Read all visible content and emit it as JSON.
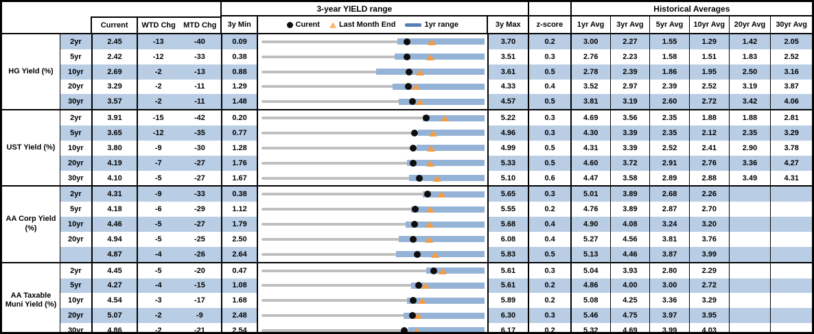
{
  "titles": {
    "range": "3-year YIELD range",
    "historical": "Historical Averages"
  },
  "headers": {
    "current": "Current",
    "wtd": "WTD Chg",
    "mtd": "MTD Chg",
    "min": "3y Min",
    "max": "3y Max",
    "z": "z-score",
    "avgs": [
      "1yr Avg",
      "3yr Avg",
      "5yr Avg",
      "10yr Avg",
      "20yr Avg",
      "30yr Avg"
    ]
  },
  "legend": {
    "current": "Curent",
    "last_month": "Last Month End",
    "range": "1yr range"
  },
  "colors": {
    "stripe": "#B9CDE5",
    "bar": "#95B3D7",
    "track": "#BFBFBF",
    "dot": "#0d0d0d",
    "triangle": "#F49C42",
    "legend_triangle": "#F8B870",
    "legend_dash": "#567FB4"
  },
  "sections": [
    {
      "label": "HG Yield (%)",
      "rows": [
        {
          "tenor": "2yr",
          "current": "2.45",
          "wtd": "-13",
          "mtd": "-40",
          "min": "0.09",
          "max": "3.70",
          "z": "0.2",
          "avgs": [
            "3.00",
            "2.27",
            "1.55",
            "1.29",
            "1.42",
            "2.05"
          ],
          "bar_start": 0.61
        },
        {
          "tenor": "5yr",
          "current": "2.42",
          "wtd": "-12",
          "mtd": "-33",
          "min": "0.38",
          "max": "3.51",
          "z": "0.3",
          "avgs": [
            "2.76",
            "2.23",
            "1.58",
            "1.51",
            "1.83",
            "2.52"
          ],
          "bar_start": 0.598
        },
        {
          "tenor": "10yr",
          "current": "2.69",
          "wtd": "-2",
          "mtd": "-13",
          "min": "0.88",
          "max": "3.61",
          "z": "0.5",
          "avgs": [
            "2.78",
            "2.39",
            "1.86",
            "1.95",
            "2.50",
            "3.16"
          ],
          "bar_start": 0.515
        },
        {
          "tenor": "20yr",
          "current": "3.29",
          "wtd": "-2",
          "mtd": "-11",
          "min": "1.29",
          "max": "4.33",
          "z": "0.4",
          "avgs": [
            "3.52",
            "2.97",
            "2.39",
            "2.52",
            "3.19",
            "3.87"
          ],
          "bar_start": 0.588
        },
        {
          "tenor": "30yr",
          "current": "3.57",
          "wtd": "-2",
          "mtd": "-11",
          "min": "1.48",
          "max": "4.57",
          "z": "0.5",
          "avgs": [
            "3.81",
            "3.19",
            "2.60",
            "2.72",
            "3.42",
            "4.06"
          ],
          "bar_start": 0.616
        }
      ]
    },
    {
      "label": "UST Yield (%)",
      "rows": [
        {
          "tenor": "2yr",
          "current": "3.91",
          "wtd": "-15",
          "mtd": "-42",
          "min": "0.20",
          "max": "5.22",
          "z": "0.3",
          "avgs": [
            "4.69",
            "3.56",
            "2.35",
            "1.88",
            "1.88",
            "2.81"
          ],
          "bar_start": 0.724
        },
        {
          "tenor": "5yr",
          "current": "3.65",
          "wtd": "-12",
          "mtd": "-35",
          "min": "0.77",
          "max": "4.96",
          "z": "0.3",
          "avgs": [
            "4.30",
            "3.39",
            "2.35",
            "2.12",
            "2.35",
            "3.29"
          ],
          "bar_start": 0.703
        },
        {
          "tenor": "10yr",
          "current": "3.80",
          "wtd": "-9",
          "mtd": "-30",
          "min": "1.28",
          "max": "4.99",
          "z": "0.5",
          "avgs": [
            "4.31",
            "3.39",
            "2.52",
            "2.41",
            "2.90",
            "3.78"
          ],
          "bar_start": 0.697
        },
        {
          "tenor": "20yr",
          "current": "4.19",
          "wtd": "-7",
          "mtd": "-27",
          "min": "1.76",
          "max": "5.33",
          "z": "0.5",
          "avgs": [
            "4.60",
            "3.72",
            "2.91",
            "2.76",
            "3.36",
            "4.27"
          ],
          "bar_start": 0.653
        },
        {
          "tenor": "30yr",
          "current": "4.10",
          "wtd": "-5",
          "mtd": "-27",
          "min": "1.67",
          "max": "5.10",
          "z": "0.6",
          "avgs": [
            "4.47",
            "3.58",
            "2.89",
            "2.88",
            "3.49",
            "4.31"
          ],
          "bar_start": 0.663
        }
      ]
    },
    {
      "label": "AA Corp Yield (%)",
      "rows": [
        {
          "tenor": "2yr",
          "current": "4.31",
          "wtd": "-9",
          "mtd": "-33",
          "min": "0.38",
          "max": "5.65",
          "z": "0.3",
          "avgs": [
            "5.01",
            "3.89",
            "2.68",
            "2.26",
            "",
            ""
          ],
          "bar_start": 0.724
        },
        {
          "tenor": "5yr",
          "current": "4.18",
          "wtd": "-6",
          "mtd": "-29",
          "min": "1.12",
          "max": "5.55",
          "z": "0.2",
          "avgs": [
            "4.76",
            "3.89",
            "2.87",
            "2.70",
            "",
            ""
          ],
          "bar_start": 0.67
        },
        {
          "tenor": "10yr",
          "current": "4.46",
          "wtd": "-5",
          "mtd": "-27",
          "min": "1.79",
          "max": "5.68",
          "z": "0.4",
          "avgs": [
            "4.90",
            "4.08",
            "3.24",
            "3.20",
            "",
            ""
          ],
          "bar_start": 0.648
        },
        {
          "tenor": "20yr",
          "current": "4.94",
          "wtd": "-5",
          "mtd": "-25",
          "min": "2.50",
          "max": "6.08",
          "z": "0.4",
          "avgs": [
            "5.27",
            "4.56",
            "3.81",
            "3.76",
            "",
            ""
          ],
          "bar_start": 0.616
        },
        {
          "tenor": "",
          "current": "4.87",
          "wtd": "-4",
          "mtd": "-26",
          "min": "2.64",
          "max": "5.83",
          "z": "0.5",
          "avgs": [
            "5.13",
            "4.46",
            "3.87",
            "3.99",
            "",
            ""
          ],
          "bar_start": 0.603
        }
      ]
    },
    {
      "label": "AA Taxable Muni Yield (%)",
      "rows": [
        {
          "tenor": "2yr",
          "current": "4.45",
          "wtd": "-5",
          "mtd": "-20",
          "min": "0.47",
          "max": "5.61",
          "z": "0.3",
          "avgs": [
            "5.04",
            "3.93",
            "2.80",
            "2.29",
            "",
            ""
          ],
          "bar_start": 0.739
        },
        {
          "tenor": "5yr",
          "current": "4.27",
          "wtd": "-4",
          "mtd": "-15",
          "min": "1.08",
          "max": "5.61",
          "z": "0.2",
          "avgs": [
            "4.86",
            "4.00",
            "3.00",
            "2.72",
            "",
            ""
          ],
          "bar_start": 0.67
        },
        {
          "tenor": "10yr",
          "current": "4.54",
          "wtd": "-3",
          "mtd": "-17",
          "min": "1.68",
          "max": "5.89",
          "z": "0.2",
          "avgs": [
            "5.08",
            "4.25",
            "3.36",
            "3.29",
            "",
            ""
          ],
          "bar_start": 0.653
        },
        {
          "tenor": "20yr",
          "current": "5.07",
          "wtd": "-2",
          "mtd": "-9",
          "min": "2.48",
          "max": "6.30",
          "z": "0.3",
          "avgs": [
            "5.46",
            "4.75",
            "3.97",
            "3.95",
            "",
            ""
          ],
          "bar_start": 0.638
        },
        {
          "tenor": "30yr",
          "current": "4.86",
          "wtd": "-2",
          "mtd": "-21",
          "min": "2.54",
          "max": "6.17",
          "z": "0.2",
          "avgs": [
            "5.32",
            "4.69",
            "3.99",
            "4.03",
            "",
            ""
          ],
          "bar_start": 0.658
        }
      ]
    }
  ],
  "chart_data": {
    "type": "table",
    "title": "3-year YIELD range",
    "legend": [
      "Curent",
      "Last Month End",
      "1yr range"
    ],
    "columns": [
      "Group",
      "Tenor",
      "Current",
      "WTD Chg",
      "MTD Chg",
      "3y Min",
      "3y Max",
      "z-score",
      "1yr Avg",
      "3yr Avg",
      "5yr Avg",
      "10yr Avg",
      "20yr Avg",
      "30yr Avg"
    ],
    "rows": [
      [
        "HG Yield (%)",
        "2yr",
        2.45,
        -13,
        -40,
        0.09,
        3.7,
        0.2,
        3.0,
        2.27,
        1.55,
        1.29,
        1.42,
        2.05
      ],
      [
        "HG Yield (%)",
        "5yr",
        2.42,
        -12,
        -33,
        0.38,
        3.51,
        0.3,
        2.76,
        2.23,
        1.58,
        1.51,
        1.83,
        2.52
      ],
      [
        "HG Yield (%)",
        "10yr",
        2.69,
        -2,
        -13,
        0.88,
        3.61,
        0.5,
        2.78,
        2.39,
        1.86,
        1.95,
        2.5,
        3.16
      ],
      [
        "HG Yield (%)",
        "20yr",
        3.29,
        -2,
        -11,
        1.29,
        4.33,
        0.4,
        3.52,
        2.97,
        2.39,
        2.52,
        3.19,
        3.87
      ],
      [
        "HG Yield (%)",
        "30yr",
        3.57,
        -2,
        -11,
        1.48,
        4.57,
        0.5,
        3.81,
        3.19,
        2.6,
        2.72,
        3.42,
        4.06
      ],
      [
        "UST Yield (%)",
        "2yr",
        3.91,
        -15,
        -42,
        0.2,
        5.22,
        0.3,
        4.69,
        3.56,
        2.35,
        1.88,
        1.88,
        2.81
      ],
      [
        "UST Yield (%)",
        "5yr",
        3.65,
        -12,
        -35,
        0.77,
        4.96,
        0.3,
        4.3,
        3.39,
        2.35,
        2.12,
        2.35,
        3.29
      ],
      [
        "UST Yield (%)",
        "10yr",
        3.8,
        -9,
        -30,
        1.28,
        4.99,
        0.5,
        4.31,
        3.39,
        2.52,
        2.41,
        2.9,
        3.78
      ],
      [
        "UST Yield (%)",
        "20yr",
        4.19,
        -7,
        -27,
        1.76,
        5.33,
        0.5,
        4.6,
        3.72,
        2.91,
        2.76,
        3.36,
        4.27
      ],
      [
        "UST Yield (%)",
        "30yr",
        4.1,
        -5,
        -27,
        1.67,
        5.1,
        0.6,
        4.47,
        3.58,
        2.89,
        2.88,
        3.49,
        4.31
      ],
      [
        "AA Corp Yield (%)",
        "2yr",
        4.31,
        -9,
        -33,
        0.38,
        5.65,
        0.3,
        5.01,
        3.89,
        2.68,
        2.26,
        null,
        null
      ],
      [
        "AA Corp Yield (%)",
        "5yr",
        4.18,
        -6,
        -29,
        1.12,
        5.55,
        0.2,
        4.76,
        3.89,
        2.87,
        2.7,
        null,
        null
      ],
      [
        "AA Corp Yield (%)",
        "10yr",
        4.46,
        -5,
        -27,
        1.79,
        5.68,
        0.4,
        4.9,
        4.08,
        3.24,
        3.2,
        null,
        null
      ],
      [
        "AA Corp Yield (%)",
        "20yr",
        4.94,
        -5,
        -25,
        2.5,
        6.08,
        0.4,
        5.27,
        4.56,
        3.81,
        3.76,
        null,
        null
      ],
      [
        "AA Corp Yield (%)",
        "",
        4.87,
        -4,
        -26,
        2.64,
        5.83,
        0.5,
        5.13,
        4.46,
        3.87,
        3.99,
        null,
        null
      ],
      [
        "AA Taxable Muni Yield (%)",
        "2yr",
        4.45,
        -5,
        -20,
        0.47,
        5.61,
        0.3,
        5.04,
        3.93,
        2.8,
        2.29,
        null,
        null
      ],
      [
        "AA Taxable Muni Yield (%)",
        "5yr",
        4.27,
        -4,
        -15,
        1.08,
        5.61,
        0.2,
        4.86,
        4.0,
        3.0,
        2.72,
        null,
        null
      ],
      [
        "AA Taxable Muni Yield (%)",
        "10yr",
        4.54,
        -3,
        -17,
        1.68,
        5.89,
        0.2,
        5.08,
        4.25,
        3.36,
        3.29,
        null,
        null
      ],
      [
        "AA Taxable Muni Yield (%)",
        "20yr",
        5.07,
        -2,
        -9,
        2.48,
        6.3,
        0.3,
        5.46,
        4.75,
        3.97,
        3.95,
        null,
        null
      ],
      [
        "AA Taxable Muni Yield (%)",
        "30yr",
        4.86,
        -2,
        -21,
        2.54,
        6.17,
        0.2,
        5.32,
        4.69,
        3.99,
        4.03,
        null,
        null
      ]
    ]
  }
}
